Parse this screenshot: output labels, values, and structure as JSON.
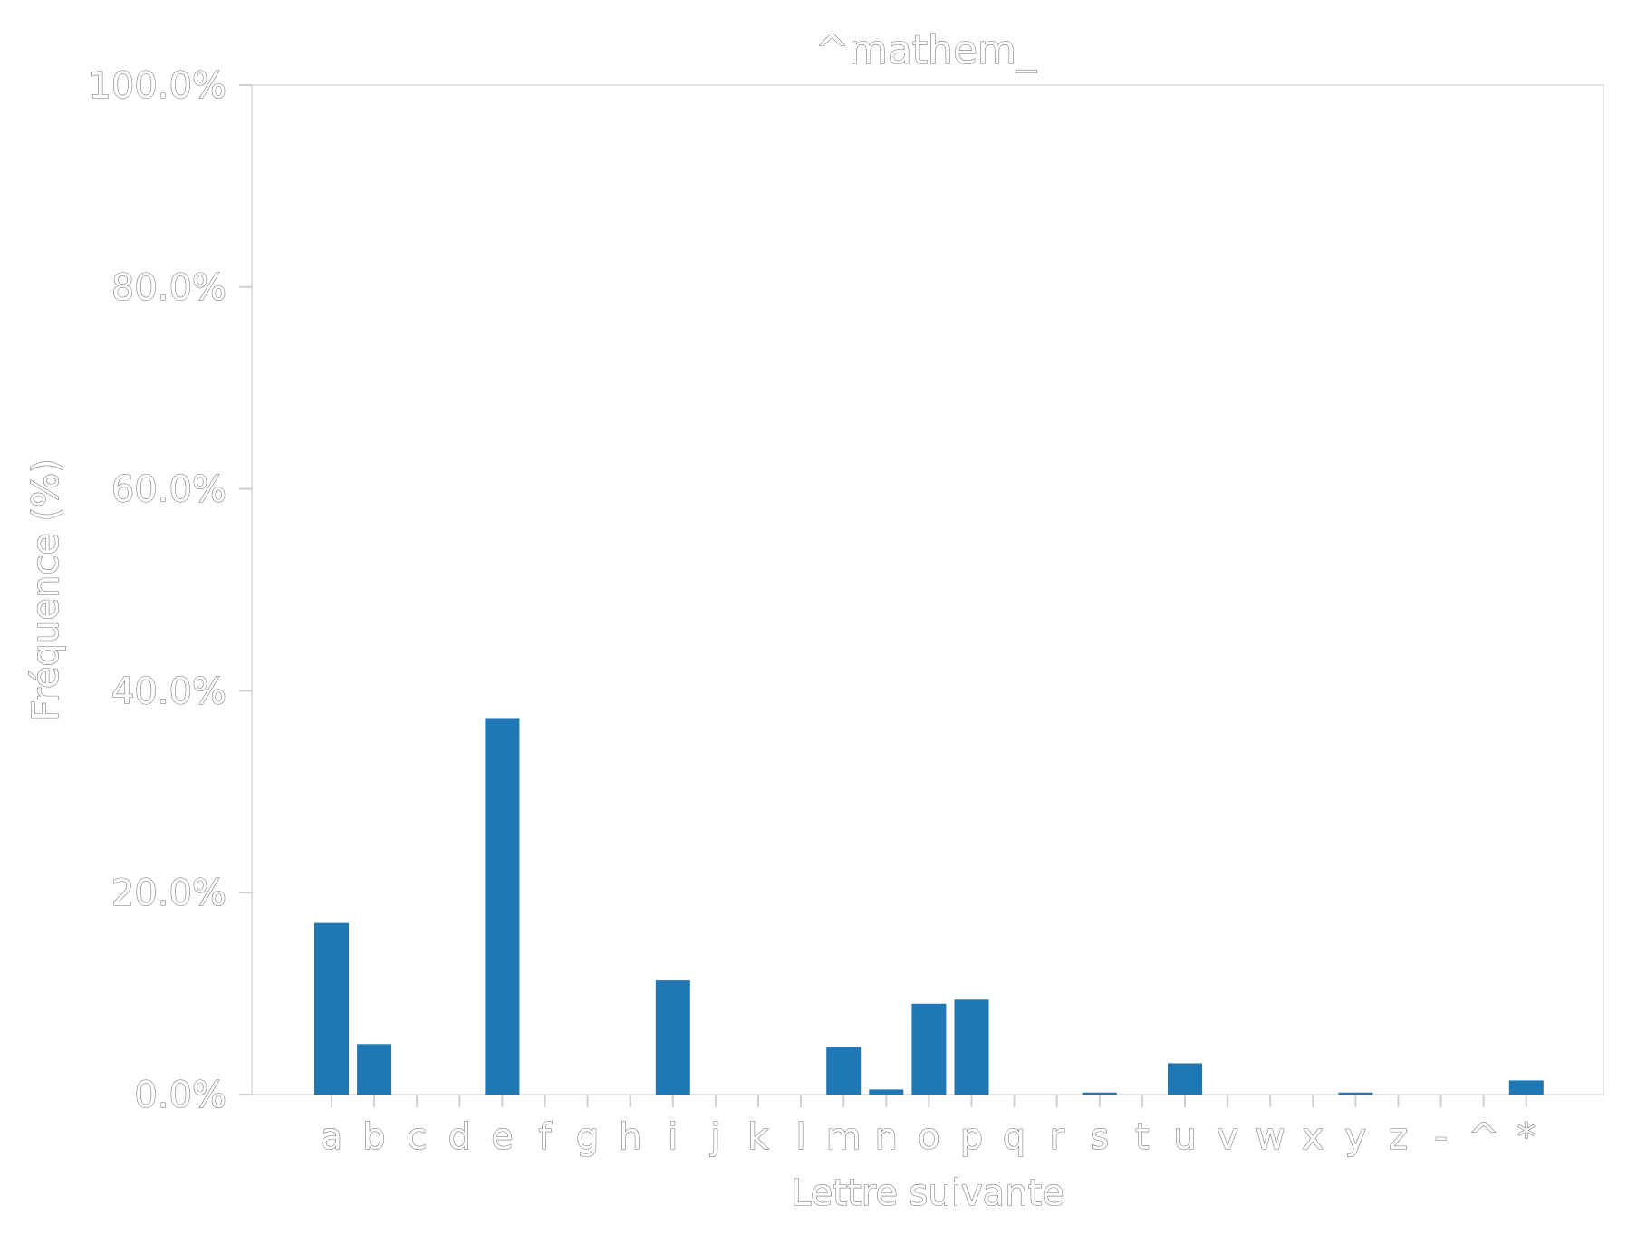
{
  "chart_data": {
    "type": "bar",
    "title": "^mathem_",
    "xlabel": "Lettre suivante",
    "ylabel": "Fréquence (%)",
    "ylim": [
      0,
      100
    ],
    "yticks": [
      "0.0%",
      "20.0%",
      "40.0%",
      "60.0%",
      "80.0%",
      "100.0%"
    ],
    "ytick_values": [
      0,
      20,
      40,
      60,
      80,
      100
    ],
    "categories": [
      "a",
      "b",
      "c",
      "d",
      "e",
      "f",
      "g",
      "h",
      "i",
      "j",
      "k",
      "l",
      "m",
      "n",
      "o",
      "p",
      "q",
      "r",
      "s",
      "t",
      "u",
      "v",
      "w",
      "x",
      "y",
      "z",
      "-",
      "^",
      "*"
    ],
    "values": [
      17.0,
      5.0,
      0,
      0,
      37.3,
      0,
      0,
      0,
      11.3,
      0,
      0,
      0,
      4.7,
      0.5,
      9.0,
      9.4,
      0,
      0,
      0.2,
      0,
      3.1,
      0,
      0,
      0,
      0.2,
      0,
      0,
      0,
      1.4
    ],
    "bar_color": "#1f77b4",
    "grid": false,
    "legend": "none"
  }
}
